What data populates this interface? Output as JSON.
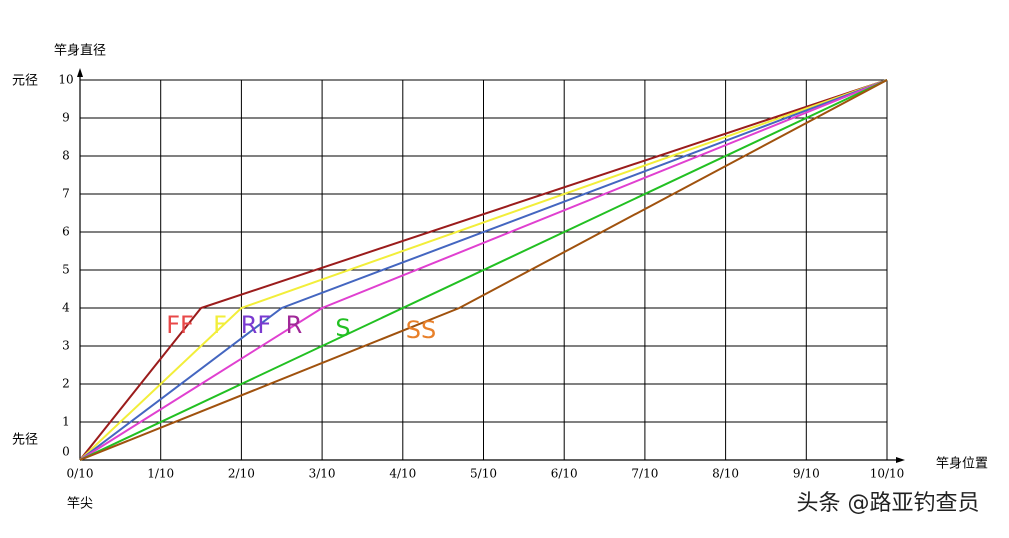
{
  "chart_data": {
    "type": "line",
    "y_axis_label": "竿身直径",
    "x_axis_label": "竿身位置",
    "y_top_label": "元径",
    "y_bottom_label": "先径",
    "x_start_label": "竿尖",
    "watermark": "头条 @路亚钓查员",
    "xlim": [
      0,
      10
    ],
    "ylim": [
      0,
      10
    ],
    "xticks": [
      {
        "value": 0,
        "label": "0/10"
      },
      {
        "value": 1,
        "label": "1/10"
      },
      {
        "value": 2,
        "label": "2/10"
      },
      {
        "value": 3,
        "label": "3/10"
      },
      {
        "value": 4,
        "label": "4/10"
      },
      {
        "value": 5,
        "label": "5/10"
      },
      {
        "value": 6,
        "label": "6/10"
      },
      {
        "value": 7,
        "label": "7/10"
      },
      {
        "value": 8,
        "label": "8/10"
      },
      {
        "value": 9,
        "label": "9/10"
      },
      {
        "value": 10,
        "label": "10/10"
      }
    ],
    "yticks": [
      0,
      1,
      2,
      3,
      4,
      5,
      6,
      7,
      8,
      9,
      10
    ],
    "grid": true,
    "series": [
      {
        "name": "FF",
        "color": "#9b1c1c",
        "label_color": "#e84848",
        "x": [
          0,
          1.5,
          10
        ],
        "values": [
          0,
          4,
          10
        ]
      },
      {
        "name": "F",
        "color": "#f2ee3a",
        "label_color": "#f2ee3a",
        "x": [
          0,
          2,
          10
        ],
        "values": [
          0,
          4,
          10
        ]
      },
      {
        "name": "RF",
        "color": "#4466c0",
        "label_color": "#7a3ad0",
        "x": [
          0,
          2.5,
          10
        ],
        "values": [
          0,
          4,
          10
        ]
      },
      {
        "name": "R",
        "color": "#e040d0",
        "label_color": "#a02898",
        "x": [
          0,
          3,
          10
        ],
        "values": [
          0,
          4,
          10
        ]
      },
      {
        "name": "S",
        "color": "#22c022",
        "label_color": "#22c022",
        "x": [
          0,
          10
        ],
        "values": [
          0,
          10
        ]
      },
      {
        "name": "SS",
        "color": "#a0520e",
        "label_color": "#e8802a",
        "x": [
          0,
          4.7,
          10
        ],
        "values": [
          0,
          4,
          10
        ]
      }
    ]
  }
}
